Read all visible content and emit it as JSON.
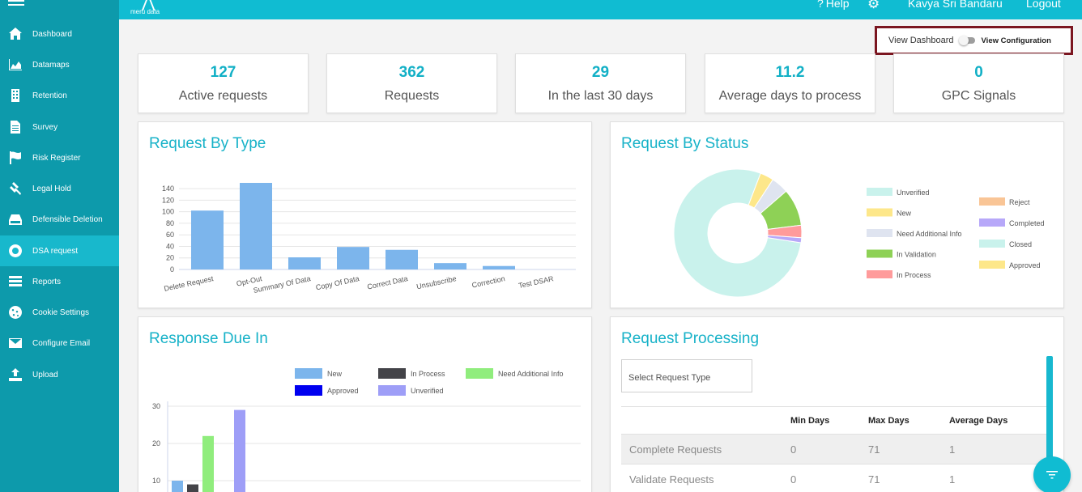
{
  "header": {
    "logo_text": "meru data",
    "help_label": "Help",
    "user_name": "Kavya Sri Bandaru",
    "logout_label": "Logout"
  },
  "sidebar": {
    "items": [
      {
        "label": "Dashboard",
        "icon": "home-icon"
      },
      {
        "label": "Datamaps",
        "icon": "area-chart-icon"
      },
      {
        "label": "Retention",
        "icon": "building-icon"
      },
      {
        "label": "Survey",
        "icon": "document-icon"
      },
      {
        "label": "Risk Register",
        "icon": "flag-icon"
      },
      {
        "label": "Legal Hold",
        "icon": "gavel-icon"
      },
      {
        "label": "Defensible Deletion",
        "icon": "drive-icon"
      },
      {
        "label": "DSA request",
        "icon": "lifebuoy-icon",
        "active": true
      },
      {
        "label": "Reports",
        "icon": "list-icon"
      },
      {
        "label": "Cookie Settings",
        "icon": "cookie-icon"
      },
      {
        "label": "Configure Email",
        "icon": "envelope-icon"
      },
      {
        "label": "Upload",
        "icon": "upload-icon"
      }
    ]
  },
  "view_toggle": {
    "left_label": "View Dashboard",
    "right_label": "View Configuration"
  },
  "stats": [
    {
      "value": "127",
      "label": "Active requests"
    },
    {
      "value": "362",
      "label": "Requests"
    },
    {
      "value": "29",
      "label": "In the last 30 days"
    },
    {
      "value": "11.2",
      "label": "Average days to process"
    },
    {
      "value": "0",
      "label": "GPC Signals"
    }
  ],
  "request_by_type": {
    "title": "Request By Type",
    "chart_data": {
      "type": "bar",
      "categories": [
        "Delete Request",
        "Opt-Out",
        "Summary Of Data",
        "Copy Of Data",
        "Correct Data",
        "Unsubscribe",
        "Correction",
        "Test DSAR"
      ],
      "values": [
        102,
        150,
        21,
        39,
        34,
        11,
        6,
        0
      ],
      "ylim": [
        0,
        150
      ],
      "yticks": [
        0,
        20,
        40,
        60,
        80,
        100,
        120,
        140
      ],
      "color": "#7cb5ec"
    }
  },
  "request_by_status": {
    "title": "Request By Status",
    "chart_data": {
      "type": "pie",
      "donut": true,
      "labels": [
        "Unverified",
        "New",
        "Need Additional Info",
        "In Validation",
        "In Process",
        "Reject",
        "Completed",
        "Closed",
        "Approved"
      ],
      "values": [
        250,
        11,
        14,
        30,
        10,
        0,
        4,
        0,
        0
      ],
      "colors": [
        "#c9f2ec",
        "#fde78a",
        "#dfe4f0",
        "#8ed156",
        "#ff9b9b",
        "#f9c596",
        "#b7a8f9",
        "#c9f2ec",
        "#fde78a"
      ]
    }
  },
  "response_due_in": {
    "title": "Response Due In",
    "legend": [
      {
        "label": "New",
        "color": "#7cb5ec"
      },
      {
        "label": "In Process",
        "color": "#434348"
      },
      {
        "label": "Need Additional Info",
        "color": "#90ed7d"
      },
      {
        "label": "Approved",
        "color": "#0000f0"
      },
      {
        "label": "Unverified",
        "color": "#9e9ef7"
      }
    ],
    "chart_data": {
      "type": "bar",
      "categories": [
        ""
      ],
      "series": [
        {
          "name": "New",
          "values": [
            10
          ]
        },
        {
          "name": "In Process",
          "values": [
            9
          ]
        },
        {
          "name": "Need Additional Info",
          "values": [
            22
          ]
        },
        {
          "name": "Approved",
          "values": [
            0
          ]
        },
        {
          "name": "Unverified",
          "values": [
            29
          ]
        }
      ],
      "yticks": [
        10,
        20,
        30
      ]
    }
  },
  "request_processing": {
    "title": "Request Processing",
    "select_placeholder": "Select Request Type",
    "columns": [
      "",
      "Min Days",
      "Max Days",
      "Average Days"
    ],
    "rows": [
      [
        "Complete Requests",
        "0",
        "71",
        "1"
      ],
      [
        "Validate Requests",
        "0",
        "71",
        "1"
      ]
    ]
  }
}
